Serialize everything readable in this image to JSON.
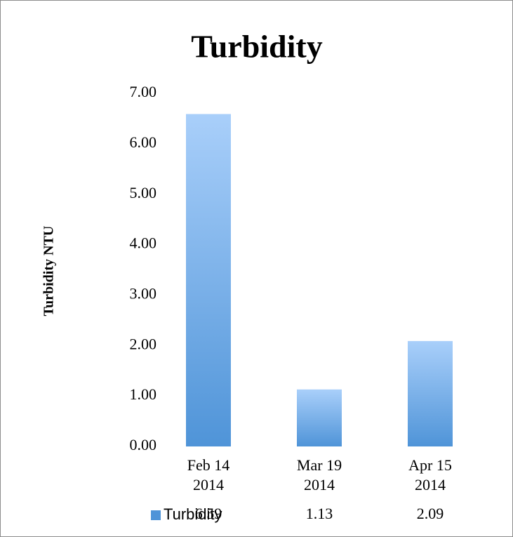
{
  "chart_data": {
    "type": "bar",
    "title": "Turbidity",
    "y_label": "Turbidity NTU",
    "categories": [
      "Feb 14 2014",
      "Mar 19 2014",
      "Apr 15 2014"
    ],
    "series": [
      {
        "name": "Turbidity",
        "color": "#4f94d8",
        "values": [
          6.59,
          1.13,
          2.09
        ]
      }
    ],
    "ylim": [
      0,
      7
    ],
    "yticks": [
      {
        "value": 0,
        "label": "0.00"
      },
      {
        "value": 1,
        "label": "1.00"
      },
      {
        "value": 2,
        "label": "2.00"
      },
      {
        "value": 3,
        "label": "3.00"
      },
      {
        "value": 4,
        "label": "4.00"
      },
      {
        "value": 5,
        "label": "5.00"
      },
      {
        "value": 6,
        "label": "6.00"
      },
      {
        "value": 7,
        "label": "7.00"
      }
    ],
    "grid": false,
    "data_table": true
  }
}
